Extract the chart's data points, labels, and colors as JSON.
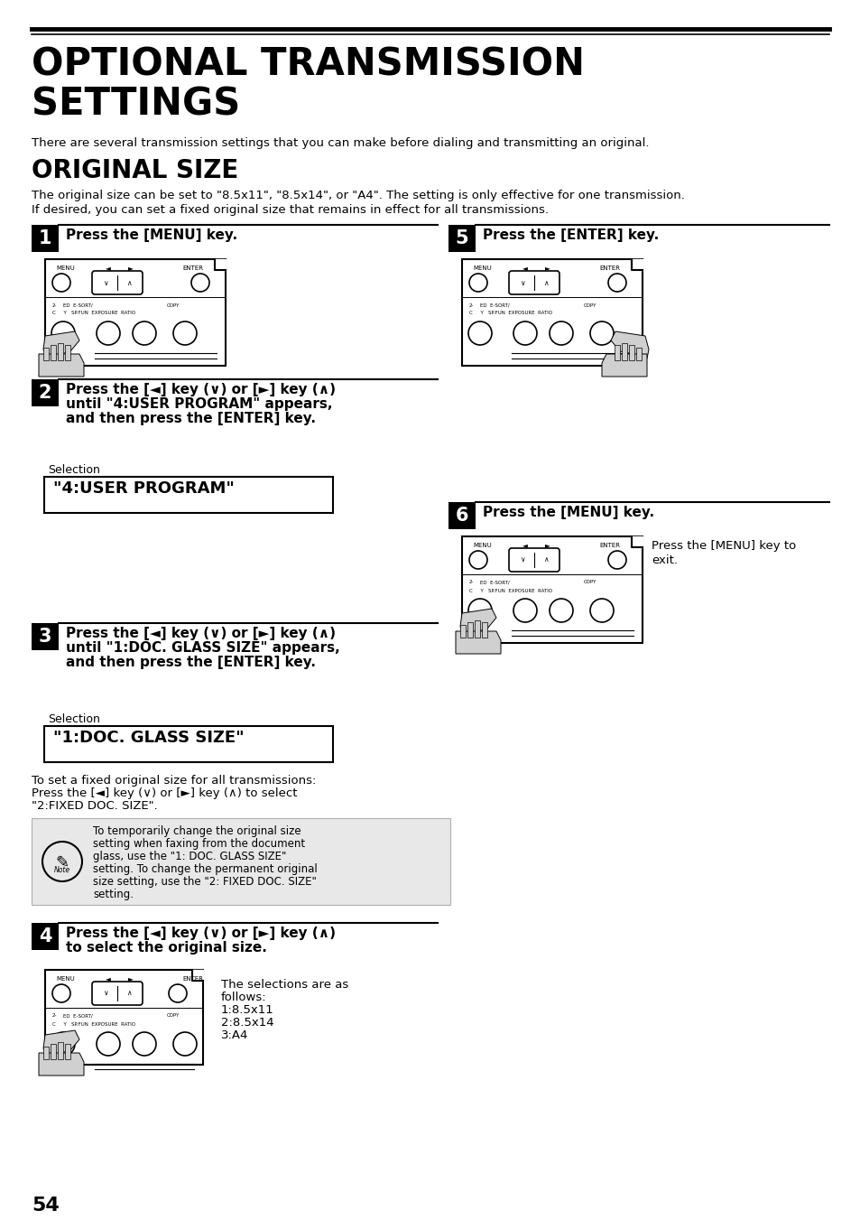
{
  "title_line1": "OPTIONAL TRANSMISSION",
  "title_line2": "SETTINGS",
  "subtitle": "There are several transmission settings that you can make before dialing and transmitting an original.",
  "section_title": "ORIGINAL SIZE",
  "section_intro_line1": "The original size can be set to \"8.5x11\", \"8.5x14\", or \"A4\". The setting is only effective for one transmission.",
  "section_intro_line2": "If desired, you can set a fixed original size that remains in effect for all transmissions.",
  "step1_text": "Press the [MENU] key.",
  "step2_text_line1": "Press the [◄] key (∨) or [►] key (∧)",
  "step2_text_line2": "until \"4:USER PROGRAM\" appears,",
  "step2_text_line3": "and then press the [ENTER] key.",
  "step3_text_line1": "Press the [◄] key (∨) or [►] key (∧)",
  "step3_text_line2": "until \"1:DOC. GLASS SIZE\" appears,",
  "step3_text_line3": "and then press the [ENTER] key.",
  "step4_text_line1": "Press the [◄] key (∨) or [►] key (∧)",
  "step4_text_line2": "to select the original size.",
  "step5_text": "Press the [ENTER] key.",
  "step6_text": "Press the [MENU] key.",
  "selection1_label": "Selection",
  "selection1_value": "\"4:USER PROGRAM\"",
  "selection2_label": "Selection",
  "selection2_value": "\"1:DOC. GLASS SIZE\"",
  "fixed_size_line1": "To set a fixed original size for all transmissions:",
  "fixed_size_line2": "Press the [◄] key (∨) or [►] key (∧) to select",
  "fixed_size_line3": "\"2:FIXED DOC. SIZE\".",
  "note_line1": "To temporarily change the original size",
  "note_line2": "setting when faxing from the document",
  "note_line3": "glass, use the \"1: DOC. GLASS SIZE\"",
  "note_line4": "setting. To change the permanent original",
  "note_line5": "size setting, use the \"2: FIXED DOC. SIZE\"",
  "note_line6": "setting.",
  "step4_sel_line1": "The selections are as",
  "step4_sel_line2": "follows:",
  "step4_sel_line3": "1:8.5x11",
  "step4_sel_line4": "2:8.5x14",
  "step4_sel_line5": "3:A4",
  "step6_note_line1": "Press the [MENU] key to",
  "step6_note_line2": "exit.",
  "page_num": "54"
}
